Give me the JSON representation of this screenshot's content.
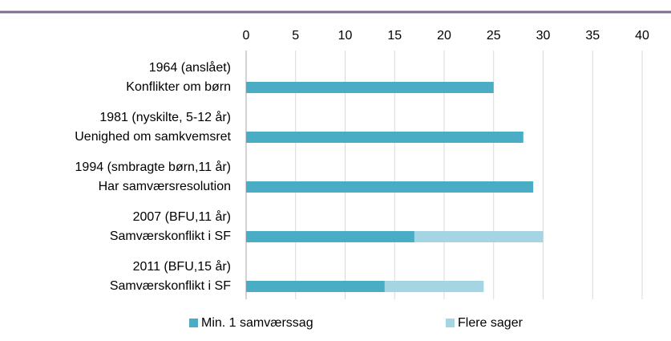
{
  "chart_data": {
    "type": "bar",
    "orientation": "horizontal",
    "stacked": true,
    "categories": [
      [
        "1964 (anslået)",
        "Konflikter om børn"
      ],
      [
        "1981 (nyskilte, 5-12 år)",
        "Uenighed om samkvemsret"
      ],
      [
        "1994 (smbragte børn,11 år)",
        "Har samværsresolution"
      ],
      [
        "2007 (BFU,11 år)",
        "Samværskonflikt i SF"
      ],
      [
        "2011 (BFU,15 år)",
        "Samværskonflikt i SF"
      ]
    ],
    "series": [
      {
        "name": "Min. 1 samværssag",
        "color": "#4bacc6",
        "values": [
          25,
          28,
          29,
          17,
          14
        ]
      },
      {
        "name": "Flere sager",
        "color": "#a5d5e3",
        "values": [
          null,
          null,
          null,
          13,
          10
        ]
      }
    ],
    "xlim": [
      0,
      40
    ],
    "xticks": [
      0,
      5,
      10,
      15,
      20,
      25,
      30,
      35,
      40
    ],
    "grid": true,
    "legend": "bottom"
  }
}
